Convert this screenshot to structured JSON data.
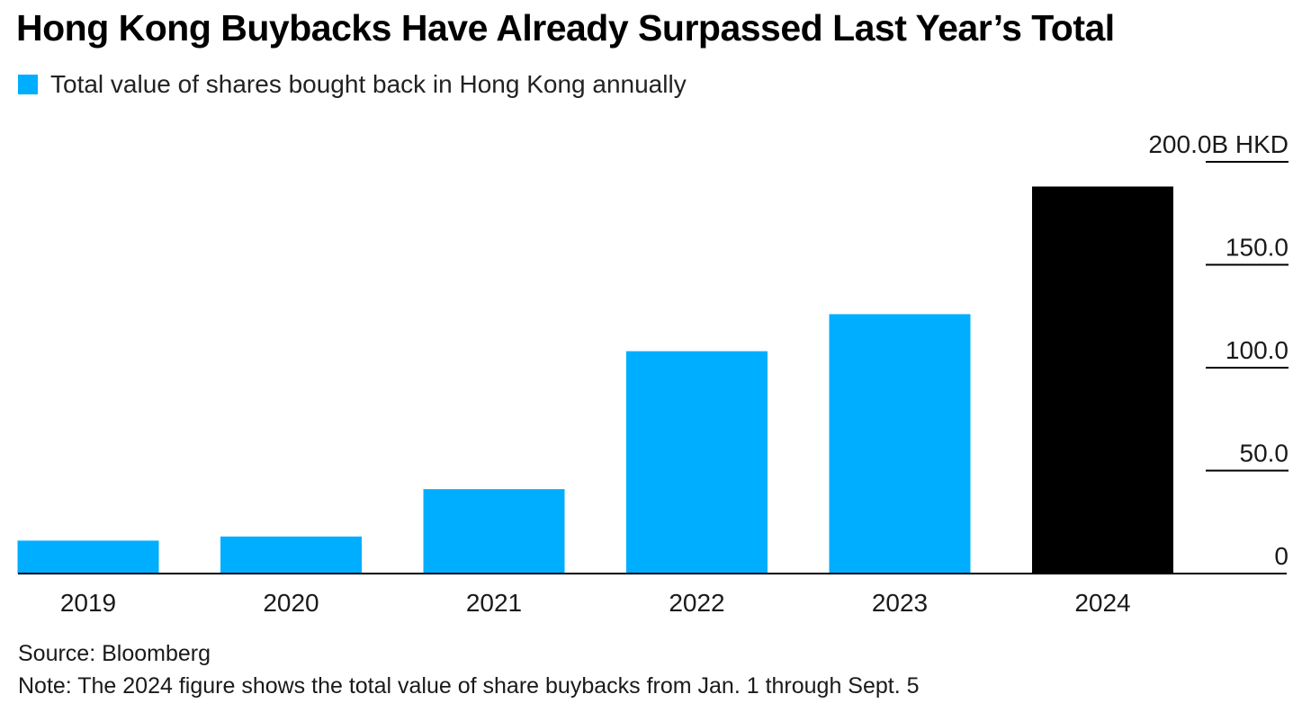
{
  "title": "Hong Kong Buybacks Have Already Surpassed Last Year’s Total",
  "legend": {
    "label": "Total value of shares bought back in Hong Kong annually",
    "color": "#00aeff"
  },
  "source": "Source: Bloomberg",
  "note": "Note: The 2024 figure shows the total value of share buybacks from Jan. 1 through Sept. 5",
  "chart_data": {
    "type": "bar",
    "categories": [
      "2019",
      "2020",
      "2021",
      "2022",
      "2023",
      "2024"
    ],
    "series": [
      {
        "name": "Total value of shares bought back in Hong Kong annually",
        "values": [
          16,
          18,
          41,
          108,
          126,
          188
        ]
      }
    ],
    "highlight": {
      "category": "2024",
      "color": "#000000"
    },
    "bar_color": "#00aeff",
    "ylabel": "",
    "unit_label": "B HKD",
    "ylim": [
      0,
      200
    ],
    "yticks": [
      0,
      50,
      100,
      150,
      200
    ],
    "ytick_labels": [
      "0",
      "50.0",
      "100.0",
      "150.0",
      "200.0B HKD"
    ],
    "y_axis_position": "right",
    "grid": false
  }
}
